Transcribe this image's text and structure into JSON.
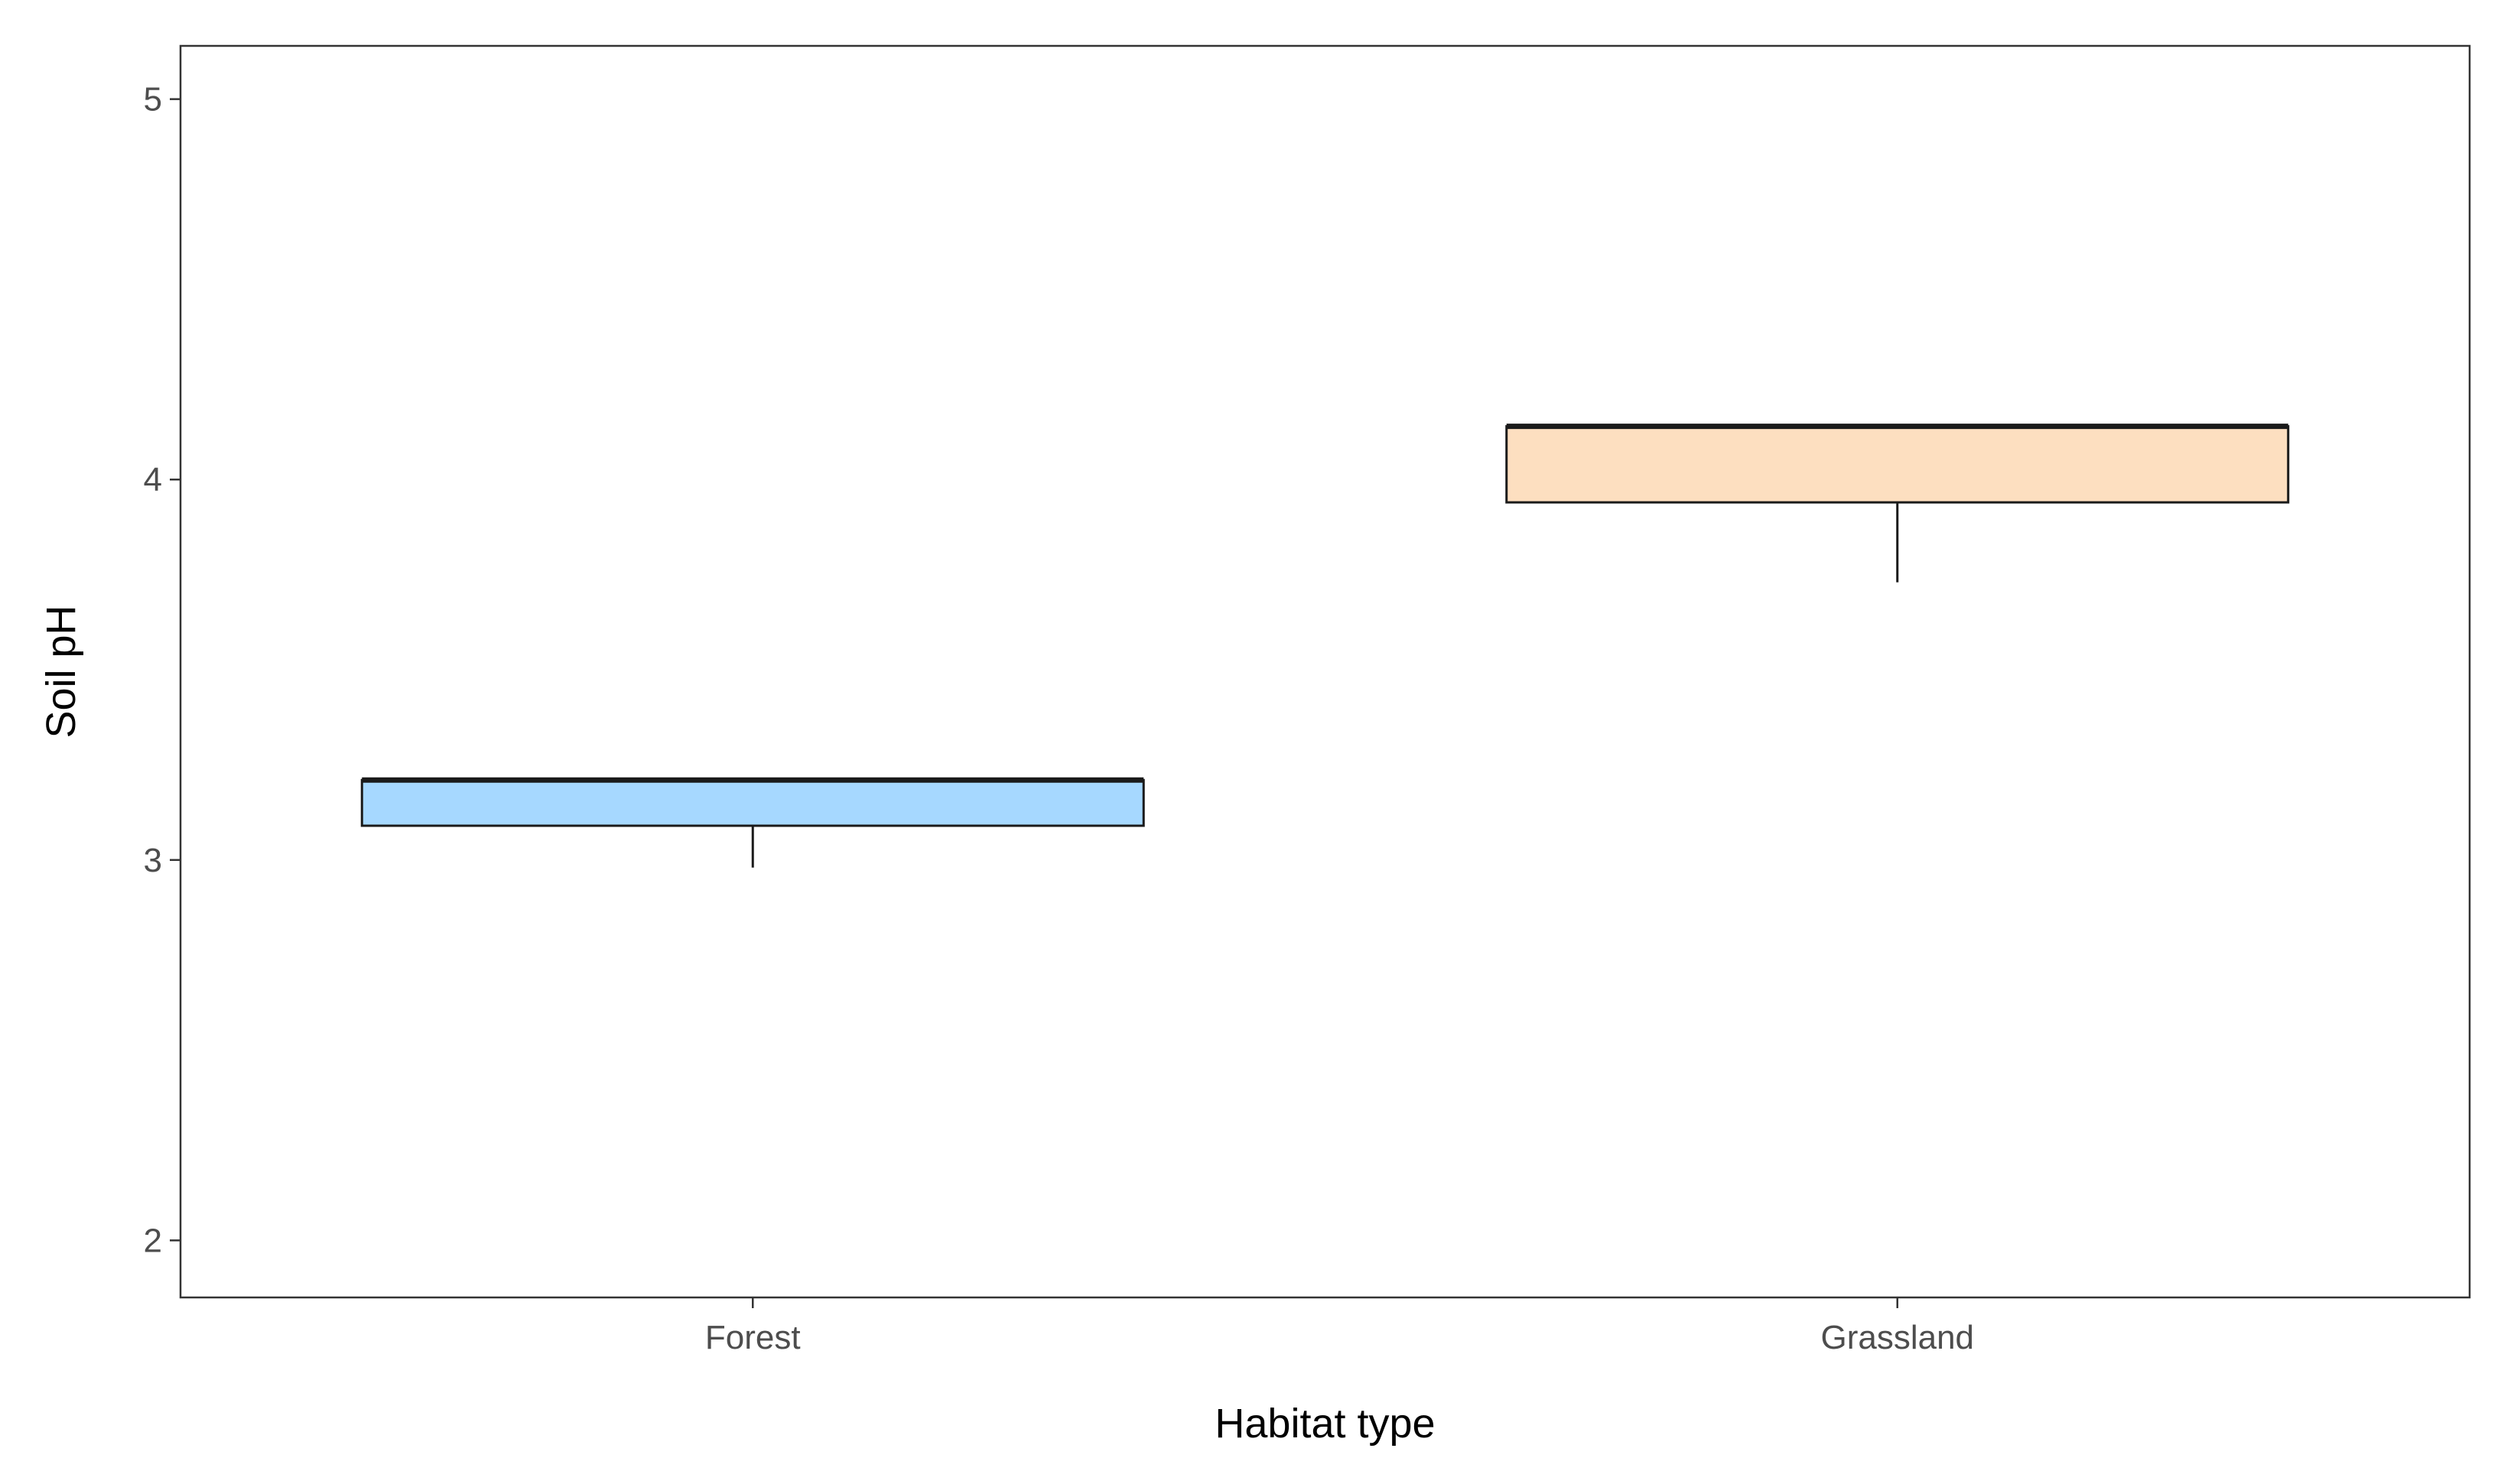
{
  "chart_data": {
    "type": "boxplot",
    "title": "",
    "xlabel": "Habitat type",
    "ylabel": "Soil pH",
    "ylim": [
      1.85,
      5.14
    ],
    "yticks": [
      2,
      3,
      4,
      5
    ],
    "grid": false,
    "legend": "none",
    "categories": [
      "Forest",
      "Grassland"
    ],
    "boxes": [
      {
        "category": "Forest",
        "color": "#a6d8ff",
        "min": 2.98,
        "q1": 3.09,
        "median": 3.21,
        "q3": 3.21,
        "max": 3.21
      },
      {
        "category": "Grassland",
        "color": "#fddfc0",
        "min": 3.73,
        "q1": 3.94,
        "median": 4.14,
        "q3": 4.14,
        "max": 4.14
      }
    ]
  }
}
